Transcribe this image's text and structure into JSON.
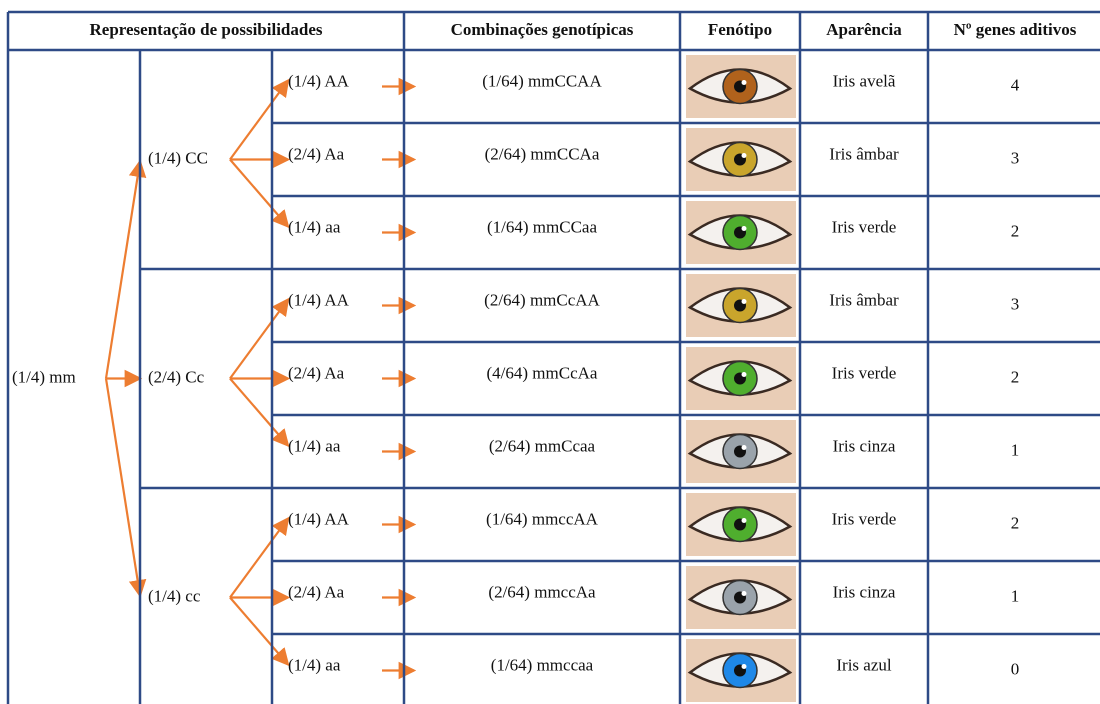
{
  "header": [
    "Representação de possibilidades",
    "Combinações genotípicas",
    "Fenótipo",
    "Aparência",
    "Nº genes aditivos"
  ],
  "root": "(1/4) mm",
  "groups": [
    {
      "label": "(1/4) CC",
      "rows": [
        {
          "allele": "(1/4) AA",
          "combination": "(1/64) mmCCAA",
          "appearance": "Iris avelã",
          "genes": 4,
          "color": "#b0621c"
        },
        {
          "allele": "(2/4) Aa",
          "combination": "(2/64) mmCCAa",
          "appearance": "Iris âmbar",
          "genes": 3,
          "color": "#c9a52c"
        },
        {
          "allele": "(1/4) aa",
          "combination": "(1/64) mmCCaa",
          "appearance": "Iris verde",
          "genes": 2,
          "color": "#4fae2e"
        }
      ]
    },
    {
      "label": "(2/4) Cc",
      "rows": [
        {
          "allele": "(1/4) AA",
          "combination": "(2/64) mmCcAA",
          "appearance": "Iris âmbar",
          "genes": 3,
          "color": "#c9a52c"
        },
        {
          "allele": "(2/4) Aa",
          "combination": "(4/64) mmCcAa",
          "appearance": "Iris verde",
          "genes": 2,
          "color": "#4fae2e"
        },
        {
          "allele": "(1/4) aa",
          "combination": "(2/64) mmCcaa",
          "appearance": "Iris cinza",
          "genes": 1,
          "color": "#9aa3ab"
        }
      ]
    },
    {
      "label": "(1/4) cc",
      "rows": [
        {
          "allele": "(1/4) AA",
          "combination": "(1/64) mmccAA",
          "appearance": "Iris verde",
          "genes": 2,
          "color": "#4fae2e"
        },
        {
          "allele": "(2/4) Aa",
          "combination": "(2/64) mmccAa",
          "appearance": "Iris cinza",
          "genes": 1,
          "color": "#9aa3ab"
        },
        {
          "allele": "(1/4) aa",
          "combination": "(1/64) mmccaa",
          "appearance": "Iris azul",
          "genes": 0,
          "color": "#1e88e8"
        }
      ]
    }
  ]
}
